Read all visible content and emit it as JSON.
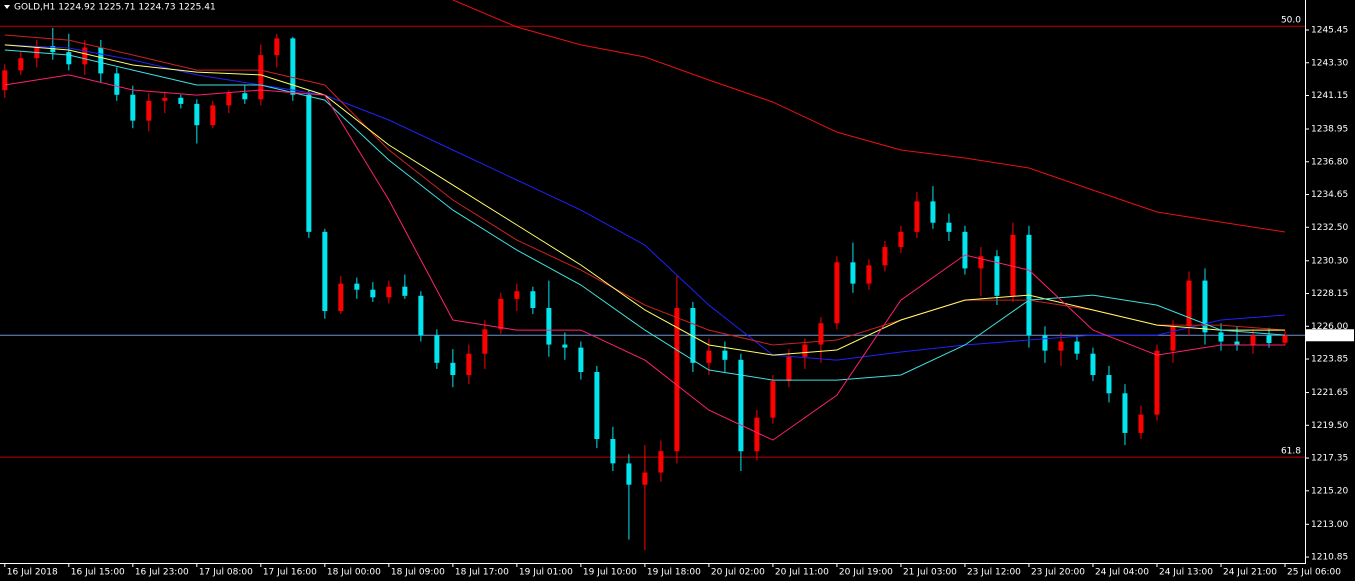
{
  "chart_data": {
    "type": "candlestick",
    "title": "GOLD,H1  1224.92 1225.71 1224.73 1225.41",
    "x": [
      0,
      2,
      4,
      6,
      8,
      10,
      12,
      14,
      16,
      18,
      20,
      22,
      24,
      26,
      28,
      30,
      32,
      34,
      36,
      38,
      40,
      42,
      44,
      46,
      48,
      50,
      52,
      54,
      56,
      58,
      60,
      62,
      64,
      66,
      68,
      70,
      72,
      74,
      76,
      78,
      80,
      82,
      84,
      86,
      88,
      90,
      92,
      94,
      96,
      98,
      100,
      102,
      104,
      106,
      108,
      110,
      112,
      114,
      116,
      118,
      120,
      122,
      124,
      126,
      128,
      130,
      132,
      134,
      136,
      138,
      140,
      142,
      144,
      146,
      148,
      150,
      152,
      154,
      156,
      158,
      160
    ],
    "open": [
      1241.5,
      1242.8,
      1243.6,
      1244.4,
      1244.0,
      1243.2,
      1244.3,
      1242.6,
      1241.2,
      1239.5,
      1240.8,
      1241.0,
      1240.6,
      1239.2,
      1240.5,
      1241.3,
      1240.9,
      1243.8,
      1244.9,
      1241.2,
      1232.2,
      1227.0,
      1228.8,
      1228.4,
      1227.9,
      1228.6,
      1228.0,
      1225.4,
      1223.6,
      1222.8,
      1224.2,
      1225.8,
      1227.8,
      1228.3,
      1227.2,
      1224.8,
      1224.6,
      1223.0,
      1218.6,
      1217.0,
      1215.6,
      1216.4,
      1217.8,
      1227.2,
      1223.6,
      1224.4,
      1223.8,
      1217.8,
      1220.0,
      1222.4,
      1224.0,
      1224.8,
      1226.2,
      1230.2,
      1228.8,
      1230.0,
      1231.2,
      1232.2,
      1234.2,
      1232.8,
      1232.2,
      1229.8,
      1230.6,
      1228.0,
      1232.0,
      1225.4,
      1224.4,
      1225.0,
      1224.2,
      1222.8,
      1221.6,
      1219.0,
      1220.2,
      1224.4,
      1226.0,
      1229.0,
      1225.6,
      1225.0,
      1224.8,
      1225.4,
      1224.92
    ],
    "high": [
      1243.2,
      1244.0,
      1244.8,
      1245.6,
      1245.2,
      1244.8,
      1244.8,
      1243.0,
      1241.8,
      1241.3,
      1241.4,
      1241.2,
      1240.9,
      1240.8,
      1241.5,
      1241.8,
      1244.5,
      1245.2,
      1245.0,
      1241.5,
      1232.4,
      1229.3,
      1229.2,
      1228.9,
      1229.0,
      1229.4,
      1228.3,
      1225.8,
      1224.5,
      1224.8,
      1226.4,
      1228.2,
      1228.8,
      1228.6,
      1229.0,
      1225.6,
      1225.0,
      1223.4,
      1219.4,
      1217.6,
      1218.2,
      1218.5,
      1229.3,
      1227.6,
      1225.2,
      1225.0,
      1224.2,
      1220.5,
      1222.8,
      1224.5,
      1225.2,
      1226.6,
      1230.6,
      1231.5,
      1230.4,
      1231.6,
      1232.6,
      1234.8,
      1235.2,
      1233.4,
      1232.6,
      1231.2,
      1231.0,
      1232.8,
      1232.6,
      1226.0,
      1225.6,
      1225.4,
      1224.6,
      1223.4,
      1222.2,
      1220.8,
      1224.8,
      1226.4,
      1229.6,
      1229.8,
      1226.2,
      1226.0,
      1225.8,
      1225.9,
      1225.71
    ],
    "low": [
      1241.0,
      1242.5,
      1243.0,
      1243.5,
      1242.8,
      1242.5,
      1242.0,
      1240.8,
      1239.0,
      1238.8,
      1240.0,
      1240.3,
      1238.0,
      1239.0,
      1240.0,
      1240.6,
      1240.5,
      1243.0,
      1240.8,
      1231.8,
      1226.5,
      1226.8,
      1227.8,
      1227.6,
      1227.5,
      1227.8,
      1225.0,
      1223.2,
      1222.0,
      1222.2,
      1223.2,
      1225.5,
      1227.0,
      1226.8,
      1224.0,
      1223.8,
      1222.5,
      1218.0,
      1216.5,
      1212.0,
      1211.3,
      1215.8,
      1217.0,
      1223.0,
      1222.8,
      1223.0,
      1216.5,
      1217.2,
      1219.6,
      1222.0,
      1223.2,
      1223.6,
      1225.8,
      1228.2,
      1228.4,
      1229.6,
      1230.8,
      1231.8,
      1232.4,
      1231.6,
      1229.4,
      1228.0,
      1227.4,
      1227.6,
      1224.6,
      1223.6,
      1223.4,
      1223.8,
      1222.4,
      1221.0,
      1218.2,
      1218.6,
      1219.8,
      1223.6,
      1225.4,
      1224.8,
      1224.4,
      1224.4,
      1224.2,
      1224.6,
      1224.73
    ],
    "close": [
      1242.8,
      1243.6,
      1244.4,
      1244.0,
      1243.2,
      1244.3,
      1242.6,
      1241.2,
      1239.5,
      1240.8,
      1241.0,
      1240.6,
      1239.2,
      1240.5,
      1241.3,
      1240.9,
      1243.8,
      1244.9,
      1241.2,
      1232.2,
      1227.0,
      1228.8,
      1228.4,
      1227.9,
      1228.6,
      1228.0,
      1225.4,
      1223.6,
      1222.8,
      1224.2,
      1225.8,
      1227.8,
      1228.3,
      1227.2,
      1224.8,
      1224.6,
      1223.0,
      1218.6,
      1217.0,
      1215.6,
      1216.4,
      1217.8,
      1227.2,
      1223.6,
      1224.4,
      1223.8,
      1217.8,
      1220.0,
      1222.4,
      1224.0,
      1224.8,
      1226.2,
      1230.2,
      1228.8,
      1230.0,
      1231.2,
      1232.2,
      1234.2,
      1232.8,
      1232.2,
      1229.8,
      1230.6,
      1228.0,
      1232.0,
      1225.4,
      1224.4,
      1225.0,
      1224.2,
      1222.8,
      1221.6,
      1219.0,
      1220.2,
      1224.4,
      1226.0,
      1229.0,
      1225.6,
      1225.0,
      1224.8,
      1225.4,
      1224.9,
      1225.41
    ],
    "up_color": "#ff0000",
    "down_color": "#00e5ee",
    "series": [
      {
        "color": "#e81010",
        "x": [
          56,
          64,
          72,
          80,
          88,
          96,
          104,
          112,
          120,
          128,
          136,
          144,
          152,
          160
        ],
        "values": [
          1247.42,
          1245.65,
          1244.47,
          1243.68,
          1242.17,
          1240.72,
          1238.75,
          1237.57,
          1237.05,
          1236.39,
          1234.94,
          1233.5,
          1232.84,
          1232.19
        ]
      },
      {
        "color": "#2020ff",
        "x": [
          0,
          8,
          16,
          24,
          32,
          40,
          48,
          56,
          64,
          72,
          80,
          88,
          96,
          104,
          112,
          120,
          128,
          136,
          144,
          152,
          160
        ],
        "values": [
          1244.47,
          1244.27,
          1243.48,
          1242.5,
          1241.84,
          1241.18,
          1239.54,
          1237.57,
          1235.6,
          1233.63,
          1231.33,
          1227.39,
          1224.11,
          1223.78,
          1224.31,
          1224.77,
          1225.1,
          1225.42,
          1225.42,
          1226.41,
          1226.74
        ]
      },
      {
        "color": "#cc2222",
        "x": [
          0,
          8,
          16,
          24,
          32,
          40,
          48,
          56,
          64,
          72,
          80,
          88,
          96,
          104,
          112,
          120,
          128,
          136,
          144,
          152,
          160
        ],
        "values": [
          1245.12,
          1244.79,
          1243.81,
          1242.82,
          1242.82,
          1241.84,
          1237.57,
          1234.29,
          1231.66,
          1229.69,
          1227.39,
          1225.75,
          1224.77,
          1225.1,
          1226.41,
          1227.72,
          1227.72,
          1227.07,
          1226.08,
          1226.08,
          1225.75
        ]
      },
      {
        "color": "#ffff66",
        "x": [
          0,
          8,
          16,
          24,
          32,
          40,
          48,
          56,
          64,
          72,
          80,
          88,
          96,
          104,
          112,
          120,
          128,
          136,
          144,
          152,
          160
        ],
        "values": [
          1244.47,
          1244.14,
          1243.15,
          1242.69,
          1242.5,
          1241.18,
          1237.9,
          1235.27,
          1232.65,
          1230.02,
          1227.07,
          1224.77,
          1224.11,
          1224.44,
          1226.41,
          1227.72,
          1228.05,
          1227.07,
          1226.08,
          1225.75,
          1225.75
        ]
      },
      {
        "color": "#40e0e0",
        "x": [
          0,
          8,
          16,
          24,
          32,
          40,
          48,
          56,
          64,
          72,
          80,
          88,
          96,
          104,
          112,
          120,
          128,
          136,
          144,
          152,
          160
        ],
        "values": [
          1244.14,
          1243.81,
          1242.82,
          1241.84,
          1241.84,
          1240.85,
          1236.91,
          1233.63,
          1231.0,
          1228.71,
          1225.75,
          1223.13,
          1222.47,
          1222.47,
          1222.8,
          1224.77,
          1227.72,
          1228.05,
          1227.39,
          1225.75,
          1225.42
        ]
      },
      {
        "color": "#ff2070",
        "x": [
          0,
          8,
          16,
          24,
          32,
          40,
          48,
          56,
          64,
          72,
          80,
          88,
          96,
          104,
          112,
          120,
          128,
          136,
          144,
          152,
          160
        ],
        "values": [
          1241.84,
          1242.5,
          1241.51,
          1241.18,
          1241.51,
          1241.18,
          1234.29,
          1226.41,
          1225.75,
          1225.75,
          1223.78,
          1220.5,
          1218.53,
          1221.48,
          1227.72,
          1230.68,
          1229.69,
          1225.75,
          1224.11,
          1224.77,
          1224.77
        ]
      }
    ],
    "levels": [
      {
        "value": 1245.7,
        "label": "50.0",
        "color": "#c00000"
      },
      {
        "value": 1217.41,
        "label": "61.8",
        "color": "#c00000"
      }
    ],
    "current_price": 1225.41,
    "current_price_color": "#6f8fd0",
    "xlim": [
      -0.6,
      162.5
    ],
    "ylim": [
      1210.46,
      1247.42
    ],
    "xticks": [
      {
        "value": 0,
        "label": "16 Jul 2018"
      },
      {
        "value": 8,
        "label": "16 Jul 15:00"
      },
      {
        "value": 16,
        "label": "16 Jul 23:00"
      },
      {
        "value": 24,
        "label": "17 Jul 08:00"
      },
      {
        "value": 32,
        "label": "17 Jul 16:00"
      },
      {
        "value": 40,
        "label": "18 Jul 00:00"
      },
      {
        "value": 48,
        "label": "18 Jul 09:00"
      },
      {
        "value": 56,
        "label": "18 Jul 17:00"
      },
      {
        "value": 64,
        "label": "19 Jul 01:00"
      },
      {
        "value": 72,
        "label": "19 Jul 10:00"
      },
      {
        "value": 80,
        "label": "19 Jul 18:00"
      },
      {
        "value": 88,
        "label": "20 Jul 02:00"
      },
      {
        "value": 96,
        "label": "20 Jul 11:00"
      },
      {
        "value": 104,
        "label": "20 Jul 19:00"
      },
      {
        "value": 112,
        "label": "21 Jul 03:00"
      },
      {
        "value": 120,
        "label": "23 Jul 12:00"
      },
      {
        "value": 128,
        "label": "23 Jul 20:00"
      },
      {
        "value": 136,
        "label": "24 Jul 04:00"
      },
      {
        "value": 144,
        "label": "24 Jul 13:00"
      },
      {
        "value": 152,
        "label": "24 Jul 21:00"
      },
      {
        "value": 160,
        "label": "25 Jul 06:00"
      }
    ],
    "yticks": [
      1245.45,
      {
        "value": 1243.3,
        "label": "1243.30"
      },
      1241.15,
      1238.95,
      {
        "value": 1236.8,
        "label": "1236.80"
      },
      1234.65,
      {
        "value": 1232.5,
        "label": "1232.50"
      },
      {
        "value": 1230.3,
        "label": "1230.30"
      },
      1228.15,
      {
        "value": 1226,
        "label": "1226.00"
      },
      1223.85,
      1221.65,
      {
        "value": 1219.5,
        "label": "1219.50"
      },
      1217.35,
      {
        "value": 1215.2,
        "label": "1215.20"
      },
      {
        "value": 1213,
        "label": "1213.00"
      },
      1210.85
    ]
  }
}
